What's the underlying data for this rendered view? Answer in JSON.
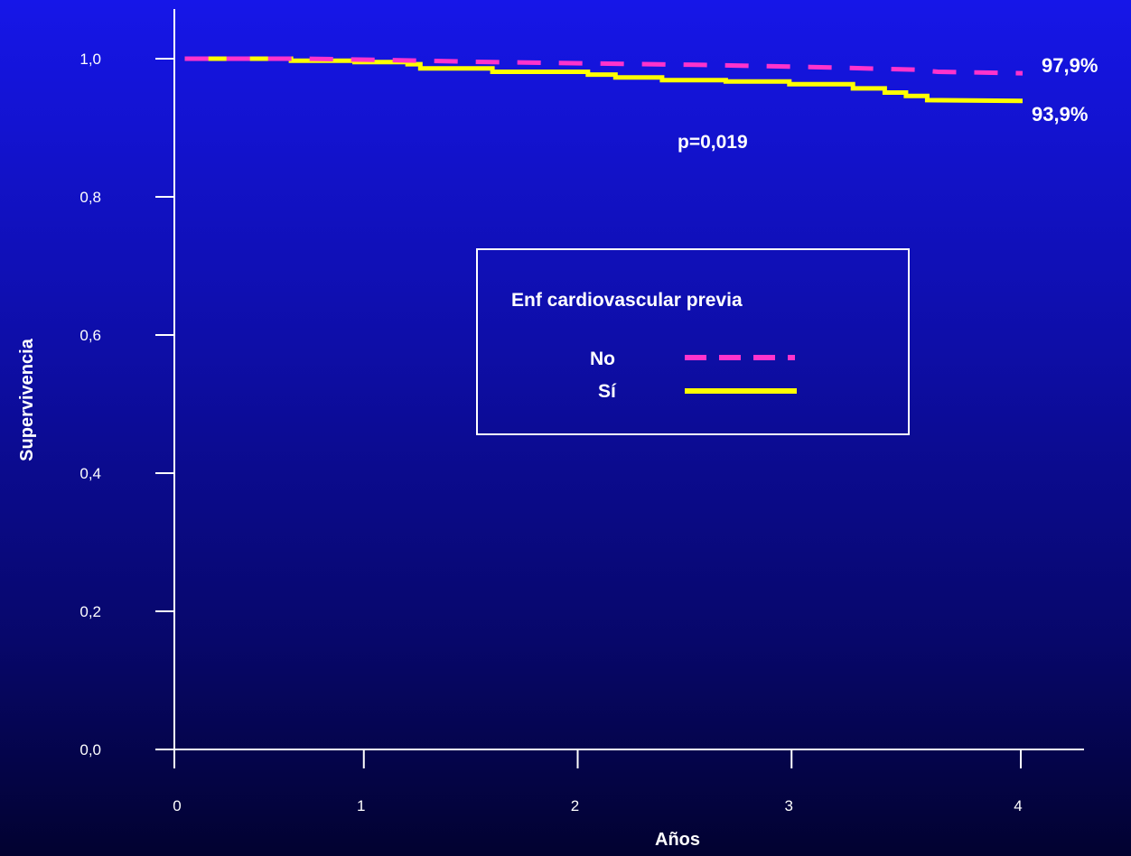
{
  "chart_data": {
    "type": "line",
    "xlabel": "Años",
    "ylabel": "Supervivencia",
    "xlim": [
      0,
      4
    ],
    "ylim": [
      0,
      1
    ],
    "x_ticks": [
      "0",
      "1",
      "2",
      "3",
      "4"
    ],
    "y_ticks": [
      "0,0",
      "0,2",
      "0,4",
      "0,6",
      "0,8",
      "1,0"
    ],
    "x_tick_values": [
      0,
      1,
      2,
      3,
      4
    ],
    "y_tick_values": [
      0,
      0.2,
      0.4,
      0.6,
      0.8,
      1.0
    ],
    "legend": {
      "title": "Enf cardiovascular previa",
      "placement": "center-right"
    },
    "series": [
      {
        "name": "No",
        "style": "dashed",
        "color": "#ff33cc",
        "end_label": "97,9%",
        "points": [
          [
            0.05,
            1.0
          ],
          [
            0.6,
            1.0
          ],
          [
            1.0,
            0.998
          ],
          [
            1.5,
            0.995
          ],
          [
            2.0,
            0.993
          ],
          [
            2.5,
            0.991
          ],
          [
            3.0,
            0.988
          ],
          [
            3.5,
            0.984
          ],
          [
            3.6,
            0.981
          ],
          [
            4.0,
            0.979
          ]
        ]
      },
      {
        "name": "Sí",
        "style": "solid",
        "color": "#ffff00",
        "end_label": "93,9%",
        "points": [
          [
            0.05,
            1.0
          ],
          [
            0.55,
            1.0
          ],
          [
            0.55,
            0.997
          ],
          [
            0.85,
            0.997
          ],
          [
            0.85,
            0.995
          ],
          [
            1.1,
            0.995
          ],
          [
            1.1,
            0.992
          ],
          [
            1.16,
            0.992
          ],
          [
            1.16,
            0.986
          ],
          [
            1.5,
            0.986
          ],
          [
            1.5,
            0.981
          ],
          [
            1.95,
            0.981
          ],
          [
            1.95,
            0.977
          ],
          [
            2.08,
            0.977
          ],
          [
            2.08,
            0.973
          ],
          [
            2.3,
            0.973
          ],
          [
            2.3,
            0.969
          ],
          [
            2.6,
            0.969
          ],
          [
            2.6,
            0.967
          ],
          [
            2.9,
            0.967
          ],
          [
            2.9,
            0.963
          ],
          [
            3.2,
            0.963
          ],
          [
            3.2,
            0.957
          ],
          [
            3.35,
            0.957
          ],
          [
            3.35,
            0.951
          ],
          [
            3.45,
            0.951
          ],
          [
            3.45,
            0.946
          ],
          [
            3.55,
            0.946
          ],
          [
            3.55,
            0.94
          ],
          [
            4.0,
            0.939
          ]
        ]
      }
    ],
    "annotations": [
      {
        "text": "p=0,019"
      }
    ]
  }
}
